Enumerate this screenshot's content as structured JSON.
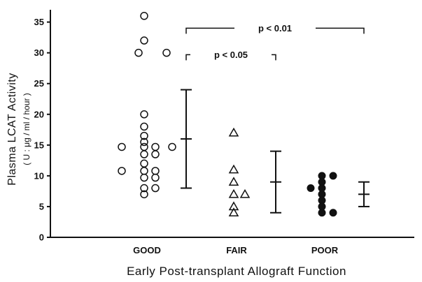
{
  "chart_data": {
    "type": "scatter",
    "xlabel": "Early  Post-transplant  Allograft  Function",
    "ylabel": "Plasma  LCAT  Activity",
    "ylabel_units": "( U : μg / ml / hour )",
    "ylim": [
      0,
      37
    ],
    "yticks": [
      0,
      5,
      10,
      15,
      20,
      25,
      30,
      35
    ],
    "grid": false,
    "categories": [
      "GOOD",
      "FAIR",
      "POOR"
    ],
    "groups": [
      {
        "category": "GOOD",
        "marker": "open-circle",
        "points": [
          {
            "y": 36,
            "col": 0
          },
          {
            "y": 32,
            "col": 0
          },
          {
            "y": 30,
            "col": -0.5
          },
          {
            "y": 30,
            "col": 2
          },
          {
            "y": 20,
            "col": 0
          },
          {
            "y": 18,
            "col": 0
          },
          {
            "y": 16.5,
            "col": 0
          },
          {
            "y": 15.5,
            "col": 0
          },
          {
            "y": 14.7,
            "col": -2
          },
          {
            "y": 14.7,
            "col": 0
          },
          {
            "y": 14.7,
            "col": 1
          },
          {
            "y": 14.7,
            "col": 2.5
          },
          {
            "y": 13.5,
            "col": 0
          },
          {
            "y": 13.5,
            "col": 1
          },
          {
            "y": 12,
            "col": 0
          },
          {
            "y": 10.8,
            "col": -2
          },
          {
            "y": 10.8,
            "col": 0
          },
          {
            "y": 10.8,
            "col": 1
          },
          {
            "y": 9.7,
            "col": 0
          },
          {
            "y": 9.7,
            "col": 1
          },
          {
            "y": 8,
            "col": 0
          },
          {
            "y": 8,
            "col": 1
          },
          {
            "y": 7,
            "col": 0
          }
        ],
        "mean": 16,
        "sd_low": 8,
        "sd_high": 24
      },
      {
        "category": "FAIR",
        "marker": "open-triangle",
        "points": [
          {
            "y": 17,
            "col": 0
          },
          {
            "y": 11,
            "col": 0
          },
          {
            "y": 9,
            "col": 0
          },
          {
            "y": 7,
            "col": 0
          },
          {
            "y": 7,
            "col": 1
          },
          {
            "y": 5,
            "col": 0
          },
          {
            "y": 4,
            "col": 0
          }
        ],
        "mean": 9,
        "sd_low": 4,
        "sd_high": 14
      },
      {
        "category": "POOR",
        "marker": "filled-circle",
        "points": [
          {
            "y": 10,
            "col": 0
          },
          {
            "y": 10,
            "col": 1
          },
          {
            "y": 9,
            "col": 0
          },
          {
            "y": 8,
            "col": -1
          },
          {
            "y": 8,
            "col": 0
          },
          {
            "y": 7,
            "col": 0
          },
          {
            "y": 6,
            "col": 0
          },
          {
            "y": 5,
            "col": 0
          },
          {
            "y": 4,
            "col": 0
          },
          {
            "y": 4,
            "col": 1
          }
        ],
        "mean": 7,
        "sd_low": 5,
        "sd_high": 9
      }
    ],
    "annotations": [
      {
        "label": "p < 0.01",
        "from": "GOOD",
        "to": "POOR",
        "y": 34
      },
      {
        "label": "p < 0.05",
        "from": "GOOD",
        "to": "FAIR",
        "y": 29.7
      }
    ]
  }
}
